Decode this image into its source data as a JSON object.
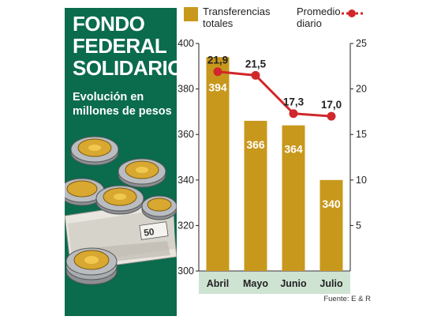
{
  "header": {
    "title_lines": [
      "FONDO",
      "FEDERAL",
      "SOLIDARIO"
    ],
    "subtitle_lines": [
      "Evolución en",
      "millones de pesos"
    ]
  },
  "legend": {
    "bars_lines": [
      "Transferencias",
      "totales"
    ],
    "line_lines": [
      "Promedio",
      "diario"
    ]
  },
  "source": "Fuente: E & R",
  "colors": {
    "panel": "#0a6b4d",
    "bar": "#c8981c",
    "line": "#d0282c",
    "category_band": "#cfe3d3"
  },
  "chart_data": {
    "type": "bar",
    "categories": [
      "Abril",
      "Mayo",
      "Junio",
      "Julio"
    ],
    "series": [
      {
        "name": "Transferencias totales",
        "type": "bar",
        "axis": "left",
        "values": [
          394,
          366,
          364,
          340
        ],
        "labels": [
          "394",
          "366",
          "364",
          "340"
        ]
      },
      {
        "name": "Promedio diario",
        "type": "line",
        "axis": "right",
        "values": [
          21.9,
          21.5,
          17.3,
          17.0
        ],
        "labels": [
          "21,9",
          "21,5",
          "17,3",
          "17,0"
        ]
      }
    ],
    "y_left": {
      "ylim": [
        300,
        400
      ],
      "ticks": [
        300,
        320,
        340,
        360,
        380,
        400
      ]
    },
    "y_right": {
      "ylim": [
        0,
        25
      ],
      "ticks": [
        5,
        10,
        15,
        20,
        25
      ]
    },
    "grid": false,
    "legend_position": "top"
  }
}
